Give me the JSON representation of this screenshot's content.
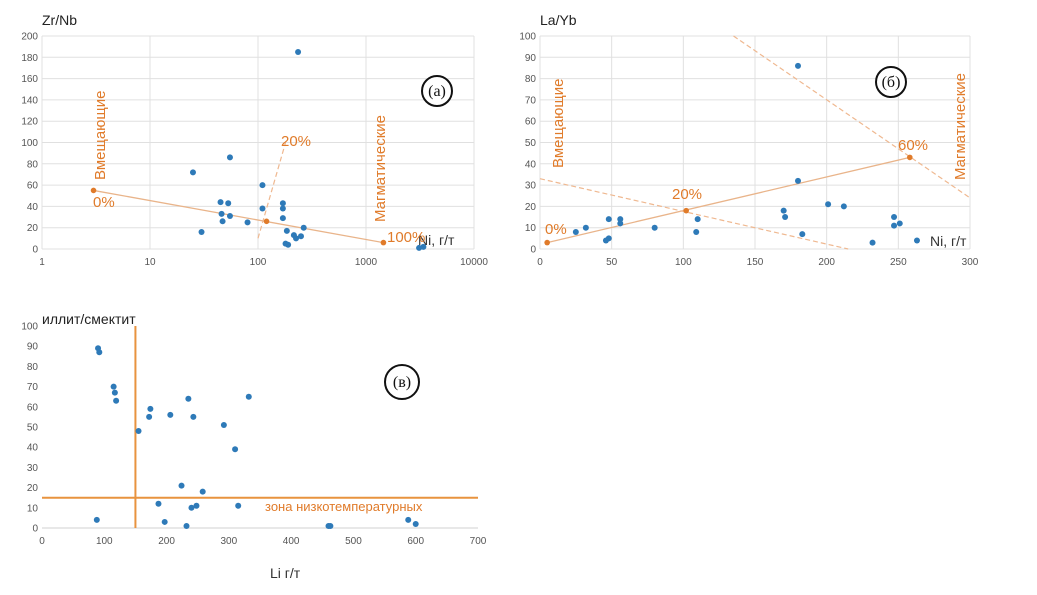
{
  "chart_data": [
    {
      "type": "scatter",
      "panel_label": "(а)",
      "title": "",
      "xlabel": "Ni, г/т",
      "ylabel": "Zr/Nb",
      "x_scale": "log",
      "xlim": [
        1,
        10000
      ],
      "ylim": [
        0,
        200
      ],
      "x_ticks": [
        "1",
        "10",
        "100",
        "1000",
        "10000"
      ],
      "y_ticks": [
        "0",
        "20",
        "40",
        "60",
        "80",
        "100",
        "120",
        "140",
        "160",
        "180",
        "200"
      ],
      "grid": true,
      "points": [
        {
          "x": 25,
          "y": 72
        },
        {
          "x": 30,
          "y": 16
        },
        {
          "x": 45,
          "y": 44
        },
        {
          "x": 46,
          "y": 33
        },
        {
          "x": 47,
          "y": 26
        },
        {
          "x": 53,
          "y": 43
        },
        {
          "x": 55,
          "y": 31
        },
        {
          "x": 55,
          "y": 86
        },
        {
          "x": 80,
          "y": 25
        },
        {
          "x": 110,
          "y": 38
        },
        {
          "x": 110,
          "y": 60
        },
        {
          "x": 170,
          "y": 43
        },
        {
          "x": 170,
          "y": 38
        },
        {
          "x": 170,
          "y": 29
        },
        {
          "x": 180,
          "y": 5
        },
        {
          "x": 185,
          "y": 17
        },
        {
          "x": 190,
          "y": 4
        },
        {
          "x": 215,
          "y": 13
        },
        {
          "x": 225,
          "y": 10
        },
        {
          "x": 235,
          "y": 185
        },
        {
          "x": 250,
          "y": 12
        },
        {
          "x": 265,
          "y": 20
        },
        {
          "x": 3100,
          "y": 1
        },
        {
          "x": 3400,
          "y": 2
        }
      ],
      "mixing_line": [
        {
          "x": 3,
          "y": 55,
          "label": "0%"
        },
        {
          "x": 120,
          "y": 26,
          "label": "20%"
        },
        {
          "x": 1450,
          "y": 6,
          "label": "100%"
        }
      ],
      "dashed_line": [
        {
          "x": 100,
          "y": 10
        },
        {
          "x": 180,
          "y": 100
        }
      ],
      "annotations": [
        "Вмещающие",
        "Магматические"
      ]
    },
    {
      "type": "scatter",
      "panel_label": "(б)",
      "title": "",
      "xlabel": "Ni, г/т",
      "ylabel": "La/Yb",
      "x_scale": "linear",
      "xlim": [
        0,
        300
      ],
      "ylim": [
        0,
        100
      ],
      "x_ticks": [
        "0",
        "50",
        "100",
        "150",
        "200",
        "250",
        "300"
      ],
      "y_ticks": [
        "0",
        "10",
        "20",
        "30",
        "40",
        "50",
        "60",
        "70",
        "80",
        "90",
        "100"
      ],
      "grid": true,
      "points": [
        {
          "x": 25,
          "y": 8
        },
        {
          "x": 32,
          "y": 10
        },
        {
          "x": 46,
          "y": 4
        },
        {
          "x": 48,
          "y": 5
        },
        {
          "x": 48,
          "y": 14
        },
        {
          "x": 56,
          "y": 12
        },
        {
          "x": 56,
          "y": 14
        },
        {
          "x": 80,
          "y": 10
        },
        {
          "x": 109,
          "y": 8
        },
        {
          "x": 110,
          "y": 14
        },
        {
          "x": 170,
          "y": 18
        },
        {
          "x": 171,
          "y": 15
        },
        {
          "x": 180,
          "y": 32
        },
        {
          "x": 180,
          "y": 86
        },
        {
          "x": 183,
          "y": 7
        },
        {
          "x": 201,
          "y": 21
        },
        {
          "x": 212,
          "y": 20
        },
        {
          "x": 232,
          "y": 3
        },
        {
          "x": 247,
          "y": 15
        },
        {
          "x": 247,
          "y": 11
        },
        {
          "x": 251,
          "y": 12
        },
        {
          "x": 263,
          "y": 4
        }
      ],
      "mixing_line": [
        {
          "x": 5,
          "y": 3,
          "label": "0%"
        },
        {
          "x": 102,
          "y": 18,
          "label": "20%"
        },
        {
          "x": 258,
          "y": 43,
          "label": "60%"
        }
      ],
      "dashed_lines": [
        [
          {
            "x": 0,
            "y": 33
          },
          {
            "x": 215,
            "y": 0
          }
        ],
        [
          {
            "x": 135,
            "y": 100
          },
          {
            "x": 300,
            "y": 24
          }
        ]
      ],
      "annotations": [
        "Вмещающие",
        "Магматические"
      ]
    },
    {
      "type": "scatter",
      "panel_label": "(в)",
      "title": "",
      "xlabel": "Li г/т",
      "ylabel": "иллит/смектит",
      "x_scale": "linear",
      "xlim": [
        0,
        700
      ],
      "ylim": [
        0,
        100
      ],
      "x_ticks": [
        "0",
        "100",
        "200",
        "300",
        "400",
        "500",
        "600",
        "700"
      ],
      "y_ticks": [
        "0",
        "10",
        "20",
        "30",
        "40",
        "50",
        "60",
        "70",
        "80",
        "90",
        "100"
      ],
      "grid": false,
      "points": [
        {
          "x": 88,
          "y": 4
        },
        {
          "x": 90,
          "y": 89
        },
        {
          "x": 92,
          "y": 87
        },
        {
          "x": 115,
          "y": 70
        },
        {
          "x": 117,
          "y": 67
        },
        {
          "x": 119,
          "y": 63
        },
        {
          "x": 155,
          "y": 48
        },
        {
          "x": 172,
          "y": 55
        },
        {
          "x": 174,
          "y": 59
        },
        {
          "x": 187,
          "y": 12
        },
        {
          "x": 197,
          "y": 3
        },
        {
          "x": 206,
          "y": 56
        },
        {
          "x": 224,
          "y": 21
        },
        {
          "x": 232,
          "y": 1
        },
        {
          "x": 235,
          "y": 64
        },
        {
          "x": 240,
          "y": 10
        },
        {
          "x": 243,
          "y": 55
        },
        {
          "x": 248,
          "y": 11
        },
        {
          "x": 258,
          "y": 18
        },
        {
          "x": 292,
          "y": 51
        },
        {
          "x": 310,
          "y": 39
        },
        {
          "x": 315,
          "y": 11
        },
        {
          "x": 332,
          "y": 65
        },
        {
          "x": 460,
          "y": 1
        },
        {
          "x": 463,
          "y": 1
        },
        {
          "x": 588,
          "y": 4
        },
        {
          "x": 600,
          "y": 2
        }
      ],
      "vertical_line_x": 150,
      "horizontal_line_y": 15,
      "zone_label": "зона низкотемпературных"
    }
  ]
}
